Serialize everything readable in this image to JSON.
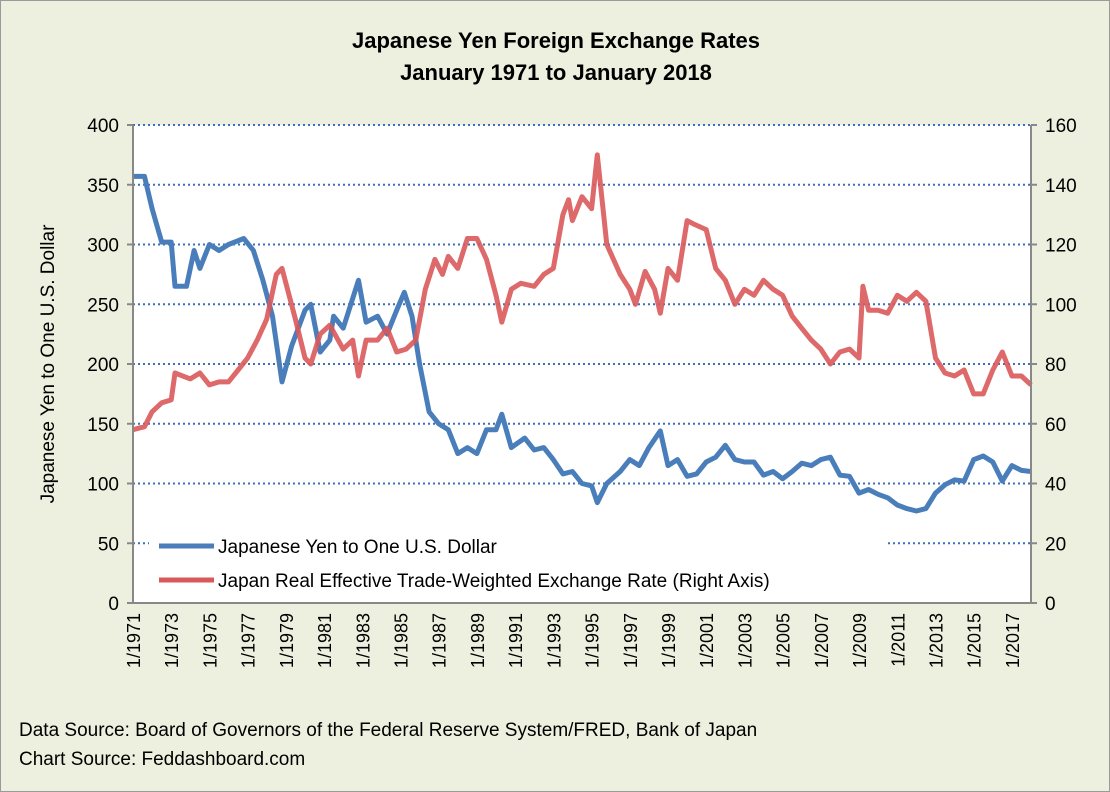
{
  "chart_data": {
    "type": "line",
    "title": "Japanese Yen Foreign Exchange Rates",
    "subtitle": "January 1971 to January 2018",
    "ylabel": "Japanese Yen to One U.S. Dollar",
    "ylim": [
      0,
      400
    ],
    "y_ticks": [
      "0",
      "50",
      "100",
      "150",
      "200",
      "250",
      "300",
      "350",
      "400"
    ],
    "y2lim": [
      0,
      160
    ],
    "y2_ticks": [
      "0",
      "20",
      "40",
      "60",
      "80",
      "100",
      "120",
      "140",
      "160"
    ],
    "xlim": [
      1971,
      2018
    ],
    "x_ticks": [
      "1/1971",
      "1/1973",
      "1/1975",
      "1/1977",
      "1/1979",
      "1/1981",
      "1/1983",
      "1/1985",
      "1/1987",
      "1/1989",
      "1/1991",
      "1/1993",
      "1/1995",
      "1/1997",
      "1/1999",
      "1/2001",
      "1/2003",
      "1/2005",
      "1/2007",
      "1/2009",
      "1/2011",
      "1/2013",
      "1/2015",
      "1/2017"
    ],
    "grid": true,
    "legend_position": "bottom-left",
    "series": [
      {
        "name": "Japanese Yen to One U.S. Dollar",
        "axis": "left",
        "color": "#4a7ebb",
        "x": [
          1971,
          1971.6,
          1972,
          1972.5,
          1973,
          1973.2,
          1973.8,
          1974.2,
          1974.5,
          1975,
          1975.5,
          1976,
          1976.8,
          1977.3,
          1977.8,
          1978.3,
          1978.8,
          1979.3,
          1980,
          1980.3,
          1980.8,
          1981.3,
          1981.5,
          1982,
          1982.8,
          1983.2,
          1983.8,
          1984.3,
          1984.8,
          1985.2,
          1985.6,
          1986,
          1986.5,
          1987,
          1987.5,
          1988,
          1988.5,
          1989,
          1989.5,
          1990,
          1990.3,
          1990.8,
          1991.5,
          1992,
          1992.5,
          1993,
          1993.5,
          1994,
          1994.5,
          1995,
          1995.3,
          1995.8,
          1996.5,
          1997,
          1997.5,
          1998,
          1998.6,
          1999,
          1999.5,
          2000,
          2000.5,
          2001,
          2001.5,
          2002,
          2002.5,
          2003,
          2003.5,
          2004,
          2004.5,
          2005,
          2005.5,
          2006,
          2006.5,
          2007,
          2007.5,
          2008,
          2008.5,
          2009,
          2009.5,
          2010,
          2010.5,
          2011,
          2011.5,
          2012,
          2012.5,
          2013,
          2013.5,
          2014,
          2014.5,
          2015,
          2015.5,
          2016,
          2016.5,
          2017,
          2017.5,
          2018
        ],
        "y": [
          357,
          357,
          330,
          302,
          302,
          265,
          265,
          295,
          280,
          300,
          295,
          300,
          305,
          295,
          270,
          240,
          185,
          215,
          245,
          250,
          210,
          220,
          240,
          230,
          270,
          235,
          240,
          225,
          245,
          260,
          240,
          200,
          160,
          150,
          145,
          125,
          130,
          125,
          145,
          145,
          158,
          130,
          138,
          128,
          130,
          120,
          108,
          110,
          100,
          98,
          84,
          100,
          110,
          120,
          115,
          130,
          144,
          115,
          120,
          106,
          108,
          118,
          122,
          132,
          120,
          118,
          118,
          107,
          110,
          104,
          110,
          117,
          115,
          120,
          122,
          107,
          106,
          92,
          95,
          91,
          88,
          82,
          79,
          77,
          79,
          92,
          99,
          103,
          102,
          120,
          123,
          118,
          102,
          115,
          111,
          110
        ]
      },
      {
        "name": "Japan Real Effective Trade-Weighted Exchange Rate (Right Axis)",
        "axis": "right",
        "color": "#d9595a",
        "x": [
          1971,
          1971.6,
          1972,
          1972.5,
          1973,
          1973.2,
          1974,
          1974.5,
          1975,
          1975.5,
          1976,
          1976.5,
          1977,
          1977.5,
          1978,
          1978.5,
          1978.8,
          1979.5,
          1980,
          1980.3,
          1980.8,
          1981.3,
          1982,
          1982.5,
          1982.8,
          1983.2,
          1983.8,
          1984.3,
          1984.8,
          1985.3,
          1985.8,
          1986.3,
          1986.8,
          1987.2,
          1987.5,
          1988,
          1988.5,
          1989,
          1989.5,
          1990,
          1990.3,
          1990.8,
          1991.3,
          1992,
          1992.5,
          1993,
          1993.5,
          1993.8,
          1994,
          1994.5,
          1995,
          1995.3,
          1995.8,
          1996.5,
          1997,
          1997.3,
          1997.8,
          1998.3,
          1998.6,
          1999,
          1999.5,
          2000,
          2000.3,
          2001,
          2001.5,
          2002,
          2002.5,
          2003,
          2003.5,
          2004,
          2004.5,
          2005,
          2005.5,
          2006,
          2006.5,
          2007,
          2007.5,
          2008,
          2008.5,
          2009,
          2009.2,
          2009.5,
          2010,
          2010.5,
          2011,
          2011.5,
          2012,
          2012.5,
          2013,
          2013.5,
          2014,
          2014.5,
          2015,
          2015.5,
          2016,
          2016.5,
          2017,
          2017.5,
          2018
        ],
        "y": [
          58,
          59,
          64,
          67,
          68,
          77,
          75,
          77,
          73,
          74,
          74,
          78,
          82,
          88,
          95,
          110,
          112,
          95,
          82,
          80,
          90,
          93,
          85,
          88,
          76,
          88,
          88,
          92,
          84,
          85,
          88,
          105,
          115,
          110,
          116,
          112,
          122,
          122,
          115,
          103,
          94,
          105,
          107,
          106,
          110,
          112,
          130,
          135,
          128,
          136,
          132,
          150,
          120,
          110,
          105,
          100,
          111,
          105,
          97,
          112,
          108,
          128,
          127,
          125,
          112,
          108,
          100,
          105,
          103,
          108,
          105,
          103,
          96,
          92,
          88,
          85,
          80,
          84,
          85,
          82,
          106,
          98,
          98,
          97,
          103,
          101,
          104,
          101,
          82,
          77,
          76,
          78,
          70,
          70,
          78,
          84,
          76,
          76,
          73
        ]
      }
    ]
  },
  "footer": {
    "data_source": "Data Source: Board of Governors of the Federal Reserve System/FRED, Bank of Japan",
    "chart_source": "Chart Source: Feddashboard.com"
  }
}
